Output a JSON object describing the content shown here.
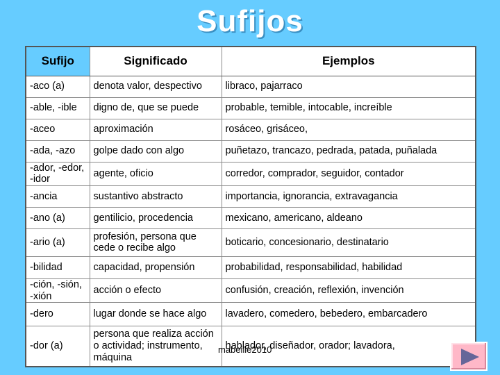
{
  "title": "Sufijos",
  "table": {
    "headers": [
      "Sufijo",
      "Significado",
      "Ejemplos"
    ],
    "rows": [
      {
        "sufijo": "-aco (a)",
        "significado": "denota valor, despectivo",
        "ejemplos": "libraco, pajarraco"
      },
      {
        "sufijo": "-able, -ible",
        "significado": "digno de, que se puede",
        "ejemplos": "probable, temible, intocable, increíble"
      },
      {
        "sufijo": "-aceo",
        "significado": "aproximación",
        "ejemplos": "rosáceo, grisáceo,"
      },
      {
        "sufijo": "-ada, -azo",
        "significado": "golpe dado con algo",
        "ejemplos": "puñetazo, trancazo, pedrada, patada, puñalada"
      },
      {
        "sufijo": "-ador, -edor, -idor",
        "significado": "agente, oficio",
        "ejemplos": "corredor, comprador, seguidor, contador"
      },
      {
        "sufijo": "-ancia",
        "significado": "sustantivo abstracto",
        "ejemplos": "importancia, ignorancia, extravagancia"
      },
      {
        "sufijo": "-ano (a)",
        "significado": "gentilicio, procedencia",
        "ejemplos": "mexicano, americano, aldeano"
      },
      {
        "sufijo": "-ario (a)",
        "significado": "profesión, persona que cede o recibe algo",
        "ejemplos": "boticario, concesionario, destinatario"
      },
      {
        "sufijo": "-bilidad",
        "significado": "capacidad, propensión",
        "ejemplos": "probabilidad, responsabilidad, habilidad"
      },
      {
        "sufijo": "-ción, -sión, -xión",
        "significado": "acción o efecto",
        "ejemplos": "confusión, creación, reflexión, invención"
      },
      {
        "sufijo": "-dero",
        "significado": "lugar donde se hace algo",
        "ejemplos": "lavadero, comedero, bebedero, embarcadero"
      },
      {
        "sufijo": "-dor (a)",
        "significado": "persona que realiza acción o actividad; instrumento, máquina",
        "ejemplos": "hablador, diseñador, orador; lavadora,"
      }
    ]
  },
  "footer": "mabeille2010",
  "nav": {
    "icon": "next-arrow-icon",
    "color": "#FFB8C8",
    "arrow_color": "#666699"
  }
}
